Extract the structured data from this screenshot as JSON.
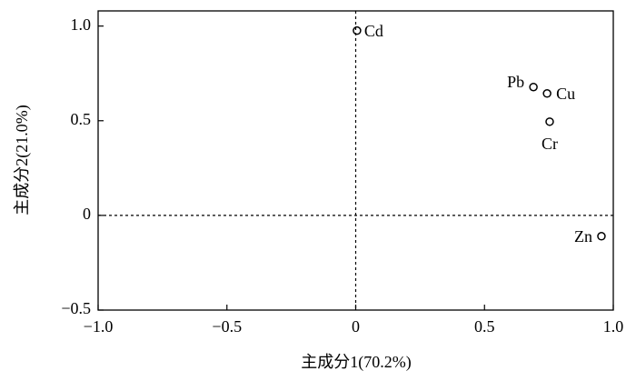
{
  "chart_data": {
    "type": "scatter",
    "x_label": "主成分1(70.2%)",
    "y_label": "主成分2(21.0%)",
    "point_labels": [
      "Cd",
      "Pb",
      "Cu",
      "Cr",
      "Zn"
    ],
    "x": [
      0.005,
      0.69,
      0.743,
      0.753,
      0.954
    ],
    "values": [
      0.976,
      0.678,
      0.644,
      0.495,
      -0.11
    ],
    "color": "#000000",
    "xlim": [
      -1.0,
      1.0
    ],
    "xticks": [
      {
        "value": -1.0,
        "label": "−1.0"
      },
      {
        "value": -0.5,
        "label": "−0.5"
      },
      0,
      0.5,
      {
        "value": 1.0,
        "label": "1.0"
      }
    ],
    "ylim": [
      -0.5,
      1.08
    ],
    "yticks": [
      {
        "value": -0.5,
        "label": "−0.5"
      },
      0,
      0.5,
      {
        "value": 1.0,
        "label": "1.0"
      }
    ],
    "zero_lines": true
  }
}
